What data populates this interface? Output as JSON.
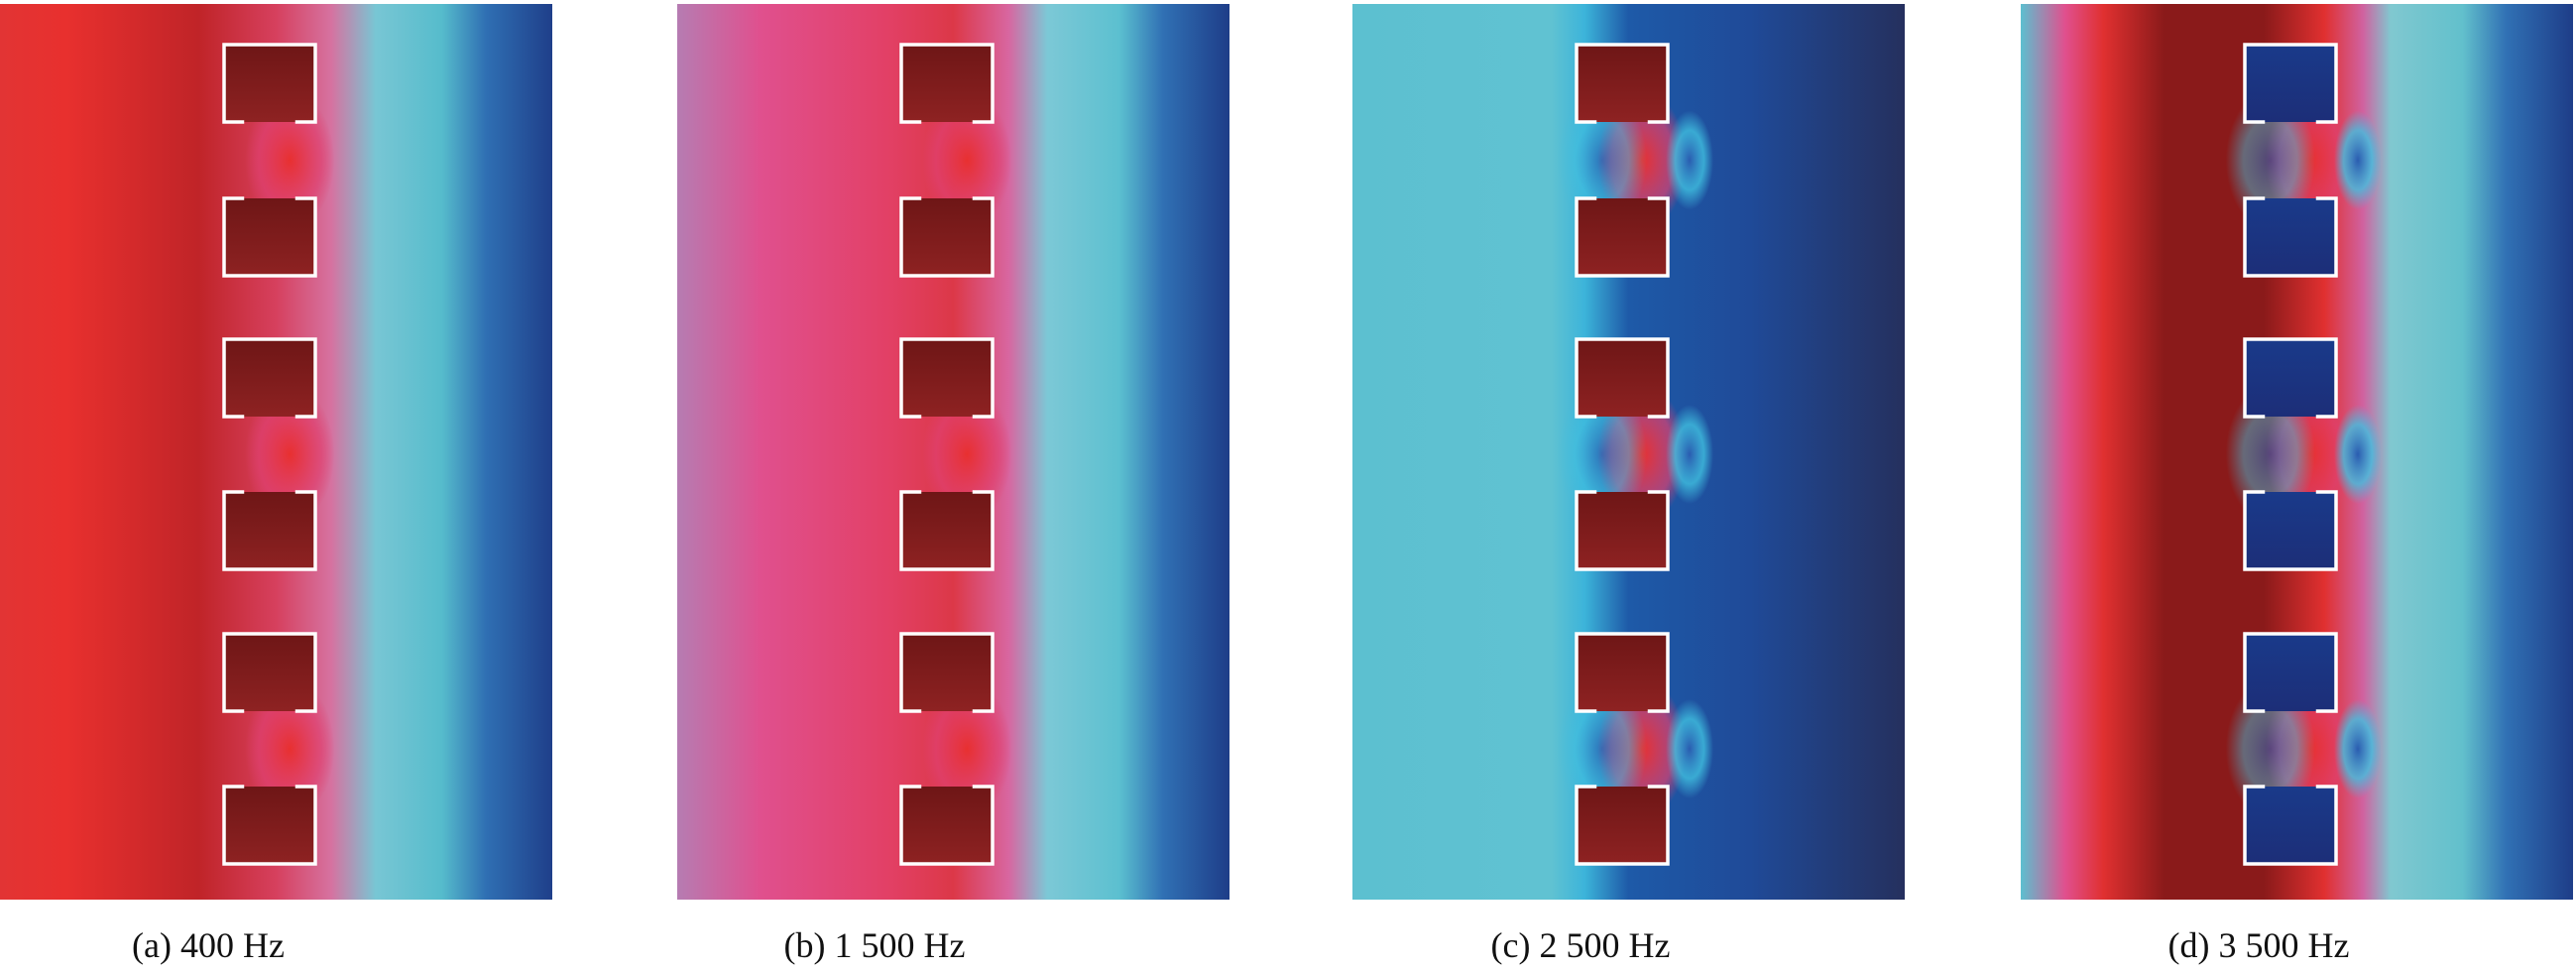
{
  "panels": [
    {
      "caption": "(a) 400 Hz"
    },
    {
      "caption": "(b) 1 500 Hz"
    },
    {
      "caption": "(c) 2 500 Hz"
    },
    {
      "caption": "(d) 3 500 Hz"
    }
  ]
}
